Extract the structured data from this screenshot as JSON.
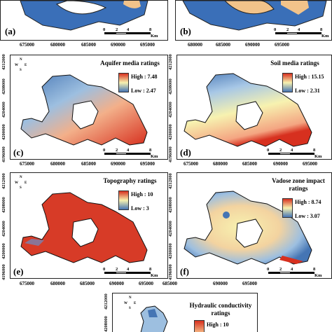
{
  "x_ticks": [
    "675000",
    "680000",
    "685000",
    "690000",
    "695000"
  ],
  "y_ticks": [
    "4196000",
    "4200000",
    "4204000",
    "4208000",
    "4212000"
  ],
  "scale": {
    "n0": "0",
    "n1": "2",
    "n2": "4",
    "n3": "8",
    "unit": "Km"
  },
  "north": {
    "n": "N",
    "s": "S",
    "e": "E",
    "w": "W"
  },
  "panels": {
    "a": {
      "label": "(a)"
    },
    "b": {
      "label": "(b)"
    },
    "c": {
      "label": "(c)",
      "title": "Aquifer media ratings",
      "high": "High : 7.48",
      "low": "Low : 2.47"
    },
    "d": {
      "label": "(d)",
      "title": "Soil media ratings",
      "high": "High : 15.15",
      "low": "Low : 2.31"
    },
    "e": {
      "label": "(e)",
      "title": "Topography ratings",
      "high": "High : 10",
      "low": "Low : 3"
    },
    "f": {
      "label": "(f)",
      "title": "Vadose zone impact ratings",
      "high": "High : 8.74",
      "low": "Low : 3.07"
    },
    "g": {
      "title": "Hydraulic conductivity ratings",
      "high": "High : 10"
    }
  },
  "colors": {
    "high": "#d7301f",
    "mid": "#f7f2b0",
    "low": "#4575b4",
    "topo": "#d73b27",
    "water": "#3a6fb8",
    "sand": "#f2c38a"
  }
}
